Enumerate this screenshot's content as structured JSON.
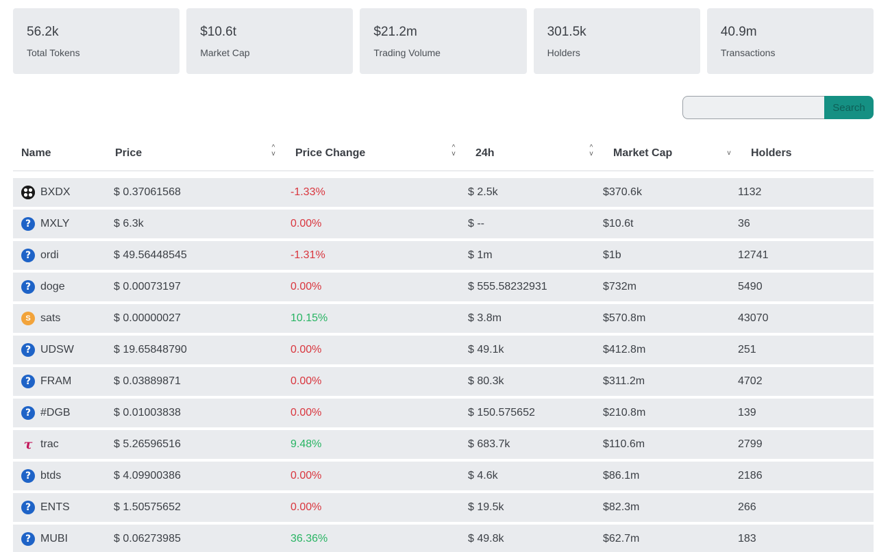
{
  "stats": [
    {
      "value": "56.2k",
      "label": "Total Tokens"
    },
    {
      "value": "$10.6t",
      "label": "Market Cap"
    },
    {
      "value": "$21.2m",
      "label": "Trading Volume"
    },
    {
      "value": "301.5k",
      "label": "Holders"
    },
    {
      "value": "40.9m",
      "label": "Transactions"
    }
  ],
  "search": {
    "placeholder": "",
    "value": "",
    "button_label": "Search"
  },
  "table": {
    "headers": {
      "name": "Name",
      "price": "Price",
      "price_change": "Price Change",
      "volume_24h": "24h",
      "market_cap": "Market Cap",
      "holders": "Holders"
    },
    "rows": [
      {
        "icon": "bxdx-logo-icon",
        "name": "BXDX",
        "price": "$ 0.37061568",
        "change": "-1.33%",
        "change_dir": "neg",
        "volume": "$ 2.5k",
        "market_cap": "$370.6k",
        "holders": "1132"
      },
      {
        "icon": "question-icon",
        "name": "MXLY",
        "price": "$ 6.3k",
        "change": "0.00%",
        "change_dir": "zero",
        "volume": "$ --",
        "market_cap": "$10.6t",
        "holders": "36"
      },
      {
        "icon": "question-icon",
        "name": "ordi",
        "price": "$ 49.56448545",
        "change": "-1.31%",
        "change_dir": "neg",
        "volume": "$ 1m",
        "market_cap": "$1b",
        "holders": "12741"
      },
      {
        "icon": "question-icon",
        "name": "doge",
        "price": "$ 0.00073197",
        "change": "0.00%",
        "change_dir": "zero",
        "volume": "$ 555.58232931",
        "market_cap": "$732m",
        "holders": "5490"
      },
      {
        "icon": "sats-coin-icon",
        "name": "sats",
        "price": "$ 0.00000027",
        "change": "10.15%",
        "change_dir": "pos",
        "volume": "$ 3.8m",
        "market_cap": "$570.8m",
        "holders": "43070"
      },
      {
        "icon": "question-icon",
        "name": "UDSW",
        "price": "$ 19.65848790",
        "change": "0.00%",
        "change_dir": "zero",
        "volume": "$ 49.1k",
        "market_cap": "$412.8m",
        "holders": "251"
      },
      {
        "icon": "question-icon",
        "name": "FRAM",
        "price": "$ 0.03889871",
        "change": "0.00%",
        "change_dir": "zero",
        "volume": "$ 80.3k",
        "market_cap": "$311.2m",
        "holders": "4702"
      },
      {
        "icon": "question-icon",
        "name": "#DGB",
        "price": "$ 0.01003838",
        "change": "0.00%",
        "change_dir": "zero",
        "volume": "$ 150.575652",
        "market_cap": "$210.8m",
        "holders": "139"
      },
      {
        "icon": "trac-logo-icon",
        "name": "trac",
        "price": "$ 5.26596516",
        "change": "9.48%",
        "change_dir": "pos",
        "volume": "$ 683.7k",
        "market_cap": "$110.6m",
        "holders": "2799"
      },
      {
        "icon": "question-icon",
        "name": "btds",
        "price": "$ 4.09900386",
        "change": "0.00%",
        "change_dir": "zero",
        "volume": "$ 4.6k",
        "market_cap": "$86.1m",
        "holders": "2186"
      },
      {
        "icon": "question-icon",
        "name": "ENTS",
        "price": "$ 1.50575652",
        "change": "0.00%",
        "change_dir": "zero",
        "volume": "$ 19.5k",
        "market_cap": "$82.3m",
        "holders": "266"
      },
      {
        "icon": "question-icon",
        "name": "MUBI",
        "price": "$ 0.06273985",
        "change": "36.36%",
        "change_dir": "pos",
        "volume": "$ 49.8k",
        "market_cap": "$62.7m",
        "holders": "183"
      }
    ]
  },
  "colors": {
    "negative": "#d9363e",
    "positive": "#28b463",
    "accent": "#159083",
    "card_bg": "#e9ebee"
  }
}
